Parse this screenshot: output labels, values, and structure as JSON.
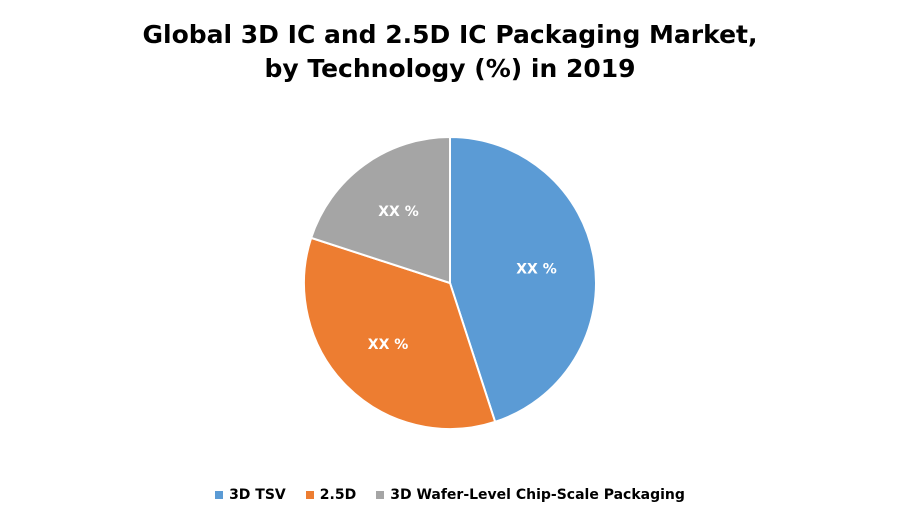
{
  "chart_data": {
    "type": "pie",
    "title_lines": [
      "Global 3D IC and 2.5D IC Packaging Market,",
      "by Technology (%) in 2019"
    ],
    "legend_position": "bottom",
    "categories": [
      "3D TSV",
      "2.5D",
      "3D Wafer-Level Chip-Scale Packaging"
    ],
    "values": [
      45,
      35,
      20
    ],
    "data_labels": [
      "XX %",
      "XX %",
      "XX %"
    ],
    "colors": [
      "#5B9BD5",
      "#ED7D31",
      "#A5A5A5"
    ]
  }
}
